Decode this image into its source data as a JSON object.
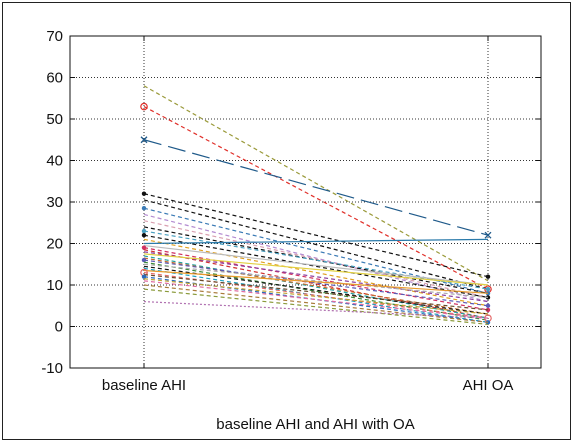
{
  "chart_data": {
    "type": "line",
    "title": "",
    "xlabel": "baseline AHI and AHI with OA",
    "ylabel": "",
    "categories": [
      "baseline AHI",
      "AHI OA"
    ],
    "ylim": [
      -10,
      70
    ],
    "yticks": [
      -10,
      0,
      10,
      20,
      30,
      40,
      50,
      60,
      70
    ],
    "grid": true,
    "series": [
      {
        "values": [
          58,
          11
        ],
        "color": "#9a9a3a",
        "dash": "4,3",
        "marker": "none"
      },
      {
        "values": [
          53,
          9
        ],
        "color": "#e0302a",
        "dash": "4,3",
        "marker": "circle"
      },
      {
        "values": [
          45,
          22
        ],
        "color": "#1f5a8a",
        "dash": "18,7",
        "marker": "x"
      },
      {
        "values": [
          32,
          12
        ],
        "color": "#111111",
        "dash": "4,3",
        "marker": "dot"
      },
      {
        "values": [
          30.5,
          9
        ],
        "color": "#111111",
        "dash": "4,3",
        "marker": "none"
      },
      {
        "values": [
          28.5,
          8
        ],
        "color": "#3a7ab5",
        "dash": "4,3",
        "marker": "dot"
      },
      {
        "values": [
          27,
          6
        ],
        "color": "#b38ad0",
        "dash": "4,3",
        "marker": "none"
      },
      {
        "values": [
          25.5,
          7
        ],
        "color": "#d9a0b0",
        "dash": "4,3",
        "marker": "none"
      },
      {
        "values": [
          24,
          8
        ],
        "color": "#111111",
        "dash": "4,3",
        "marker": "none"
      },
      {
        "values": [
          23,
          9
        ],
        "color": "#4aa0c0",
        "dash": "4,3",
        "marker": "dot"
      },
      {
        "values": [
          22,
          7
        ],
        "color": "#111111",
        "dash": "4,3",
        "marker": "dot"
      },
      {
        "values": [
          21,
          5
        ],
        "color": "#e0a020",
        "dash": "4,3",
        "marker": "none"
      },
      {
        "values": [
          20,
          21
        ],
        "color": "#2a7aaa",
        "dash": "none",
        "marker": "none"
      },
      {
        "values": [
          19.5,
          10
        ],
        "color": "#bbbbbb",
        "dash": "none",
        "marker": "none"
      },
      {
        "values": [
          19,
          4
        ],
        "color": "#d03060",
        "dash": "4,3",
        "marker": "dot"
      },
      {
        "values": [
          18.5,
          2
        ],
        "color": "#d03030",
        "dash": "4,3",
        "marker": "none"
      },
      {
        "values": [
          18,
          6
        ],
        "color": "#8a3a9a",
        "dash": "4,3",
        "marker": "none"
      },
      {
        "values": [
          17.5,
          10
        ],
        "color": "#e2d040",
        "dash": "none",
        "marker": "none"
      },
      {
        "values": [
          17,
          2
        ],
        "color": "#20a0a0",
        "dash": "4,3",
        "marker": "none"
      },
      {
        "values": [
          16.5,
          3
        ],
        "color": "#c46a2a",
        "dash": "4,3",
        "marker": "none"
      },
      {
        "values": [
          16,
          5
        ],
        "color": "#5a5ab5",
        "dash": "4,3",
        "marker": "dot"
      },
      {
        "values": [
          15.5,
          1.5
        ],
        "color": "#3a8a3a",
        "dash": "4,3",
        "marker": "none"
      },
      {
        "values": [
          15,
          7
        ],
        "color": "#aaaaaa",
        "dash": "4,3",
        "marker": "none"
      },
      {
        "values": [
          14.5,
          3
        ],
        "color": "#111111",
        "dash": "4,3",
        "marker": "none"
      },
      {
        "values": [
          14,
          1
        ],
        "color": "#20a0c0",
        "dash": "4,3",
        "marker": "none"
      },
      {
        "values": [
          13.5,
          8
        ],
        "color": "#e89a2a",
        "dash": "none",
        "marker": "none"
      },
      {
        "values": [
          13,
          2
        ],
        "color": "#e46a6a",
        "dash": "4,3",
        "marker": "circle"
      },
      {
        "values": [
          12.5,
          4
        ],
        "color": "#6a4a2a",
        "dash": "4,3",
        "marker": "none"
      },
      {
        "values": [
          12,
          1
        ],
        "color": "#2a6aba",
        "dash": "4,3",
        "marker": "dot"
      },
      {
        "values": [
          11.5,
          3
        ],
        "color": "#c0a030",
        "dash": "4,3",
        "marker": "none"
      },
      {
        "values": [
          11,
          2
        ],
        "color": "#e06aa0",
        "dash": "4,3",
        "marker": "none"
      },
      {
        "values": [
          10,
          1
        ],
        "color": "#aa7a3a",
        "dash": "4,3",
        "marker": "none"
      },
      {
        "values": [
          9,
          0.5
        ],
        "color": "#8a9a3a",
        "dash": "4,3",
        "marker": "none"
      },
      {
        "values": [
          6,
          2
        ],
        "color": "#b070b0",
        "dash": "2,2",
        "marker": "none"
      }
    ]
  }
}
